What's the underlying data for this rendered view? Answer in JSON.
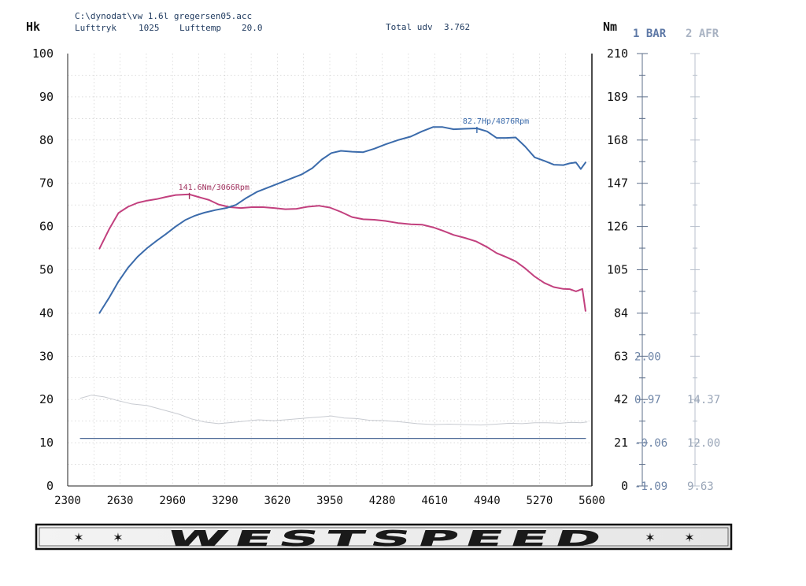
{
  "header": {
    "file_path": "C:\\dynodat\\vw 1.6l gregersen05.acc",
    "pressure_label": "Lufttryk",
    "pressure_value": "1025",
    "temp_label": "Lufttemp",
    "temp_value": "20.0",
    "total_label": "Total udv",
    "total_value": "3.762"
  },
  "legend": {
    "bar": "1 BAR",
    "afr": "2 AFR"
  },
  "brand": "WESTSPEED",
  "chart_data": {
    "type": "line",
    "left_axis_label": "Hk",
    "right_axis_label": "Nm",
    "xlim": [
      2300,
      5600
    ],
    "x_ticks": [
      2300,
      2630,
      2960,
      3290,
      3620,
      3950,
      4280,
      4610,
      4940,
      5270,
      5600
    ],
    "hp_ticks": [
      0,
      10,
      20,
      30,
      40,
      50,
      60,
      70,
      80,
      90,
      100
    ],
    "nm_ticks": [
      0,
      21,
      42,
      63,
      84,
      105,
      126,
      147,
      168,
      189,
      210
    ],
    "bar_ticks": [
      "-1.09",
      "-0.06",
      "0.97",
      "2.00"
    ],
    "afr_ticks": [
      "9.63",
      "12.00",
      "14.37"
    ],
    "grid": true,
    "series": [
      {
        "name": "Hp",
        "color": "#3b6bab",
        "axis": "hp",
        "x": [
          2500,
          2560,
          2620,
          2680,
          2740,
          2800,
          2860,
          2920,
          2980,
          3040,
          3100,
          3160,
          3230,
          3300,
          3360,
          3420,
          3490,
          3560,
          3630,
          3700,
          3770,
          3840,
          3900,
          3960,
          4020,
          4090,
          4160,
          4230,
          4300,
          4380,
          4460,
          4530,
          4600,
          4660,
          4730,
          4800,
          4876,
          4940,
          5000,
          5060,
          5120,
          5180,
          5240,
          5300,
          5360,
          5420,
          5460,
          5500,
          5530,
          5560
        ],
        "values": [
          40.0,
          43.5,
          47.3,
          50.5,
          53.0,
          55.0,
          56.7,
          58.3,
          60.0,
          61.5,
          62.5,
          63.2,
          63.8,
          64.3,
          65.0,
          66.5,
          68.0,
          69.0,
          70.0,
          71.0,
          72.0,
          73.5,
          75.5,
          77.0,
          77.5,
          77.3,
          77.2,
          78.0,
          79.0,
          80.0,
          80.8,
          82.0,
          83.0,
          83.0,
          82.5,
          82.6,
          82.7,
          82.0,
          80.5,
          80.5,
          80.6,
          78.5,
          76.0,
          75.2,
          74.3,
          74.2,
          74.6,
          74.8,
          73.3,
          74.8
        ]
      },
      {
        "name": "Nm",
        "color": "#c2407e",
        "axis": "nm",
        "x": [
          2500,
          2560,
          2620,
          2680,
          2740,
          2800,
          2860,
          2920,
          2980,
          3066,
          3130,
          3190,
          3250,
          3320,
          3390,
          3460,
          3530,
          3600,
          3670,
          3740,
          3810,
          3880,
          3950,
          4020,
          4090,
          4160,
          4230,
          4300,
          4380,
          4460,
          4530,
          4600,
          4660,
          4730,
          4800,
          4870,
          4940,
          5000,
          5060,
          5120,
          5180,
          5240,
          5300,
          5360,
          5420,
          5460,
          5500,
          5540,
          5560
        ],
        "values": [
          115.3,
          124.6,
          132.6,
          135.6,
          137.5,
          138.6,
          139.3,
          140.4,
          141.3,
          141.6,
          140.2,
          138.9,
          136.7,
          135.4,
          135.0,
          135.4,
          135.4,
          135.0,
          134.4,
          134.6,
          135.6,
          136.1,
          135.2,
          133.1,
          130.6,
          129.5,
          129.3,
          128.7,
          127.7,
          127.1,
          126.9,
          125.6,
          124.0,
          121.9,
          120.5,
          118.8,
          116.0,
          113.1,
          111.2,
          109.1,
          105.7,
          101.7,
          98.6,
          96.6,
          95.7,
          95.6,
          94.5,
          95.7,
          85.0
        ]
      },
      {
        "name": "AFR",
        "color": "#c8cbd1",
        "axis": "hp",
        "x": [
          2380,
          2450,
          2530,
          2610,
          2700,
          2800,
          2900,
          3000,
          3080,
          3160,
          3250,
          3340,
          3420,
          3500,
          3600,
          3700,
          3800,
          3900,
          3960,
          4040,
          4120,
          4200,
          4300,
          4400,
          4500,
          4600,
          4700,
          4800,
          4900,
          5000,
          5080,
          5160,
          5240,
          5320,
          5400,
          5470,
          5530,
          5570
        ],
        "values": [
          20.3,
          21.0,
          20.6,
          19.8,
          19.0,
          18.6,
          17.6,
          16.6,
          15.5,
          14.8,
          14.4,
          14.7,
          15.0,
          15.3,
          15.1,
          15.4,
          15.7,
          16.0,
          16.2,
          15.7,
          15.6,
          15.2,
          15.1,
          14.8,
          14.4,
          14.2,
          14.3,
          14.2,
          14.1,
          14.3,
          14.5,
          14.4,
          14.6,
          14.6,
          14.5,
          14.7,
          14.6,
          14.8
        ]
      },
      {
        "name": "BAR",
        "color": "#4f6a97",
        "axis": "hp",
        "x": [
          2380,
          5560
        ],
        "values": [
          11.0,
          11.0
        ]
      }
    ],
    "annotations": [
      {
        "text": "82.7Hp/4876Rpm",
        "series": "Hp",
        "x": 4876,
        "value": 82.7,
        "color": "#3b6bab"
      },
      {
        "text": "141.6Nm/3066Rpm",
        "series": "Nm",
        "x": 3066,
        "value": 141.6,
        "color": "#a0335f"
      }
    ]
  }
}
